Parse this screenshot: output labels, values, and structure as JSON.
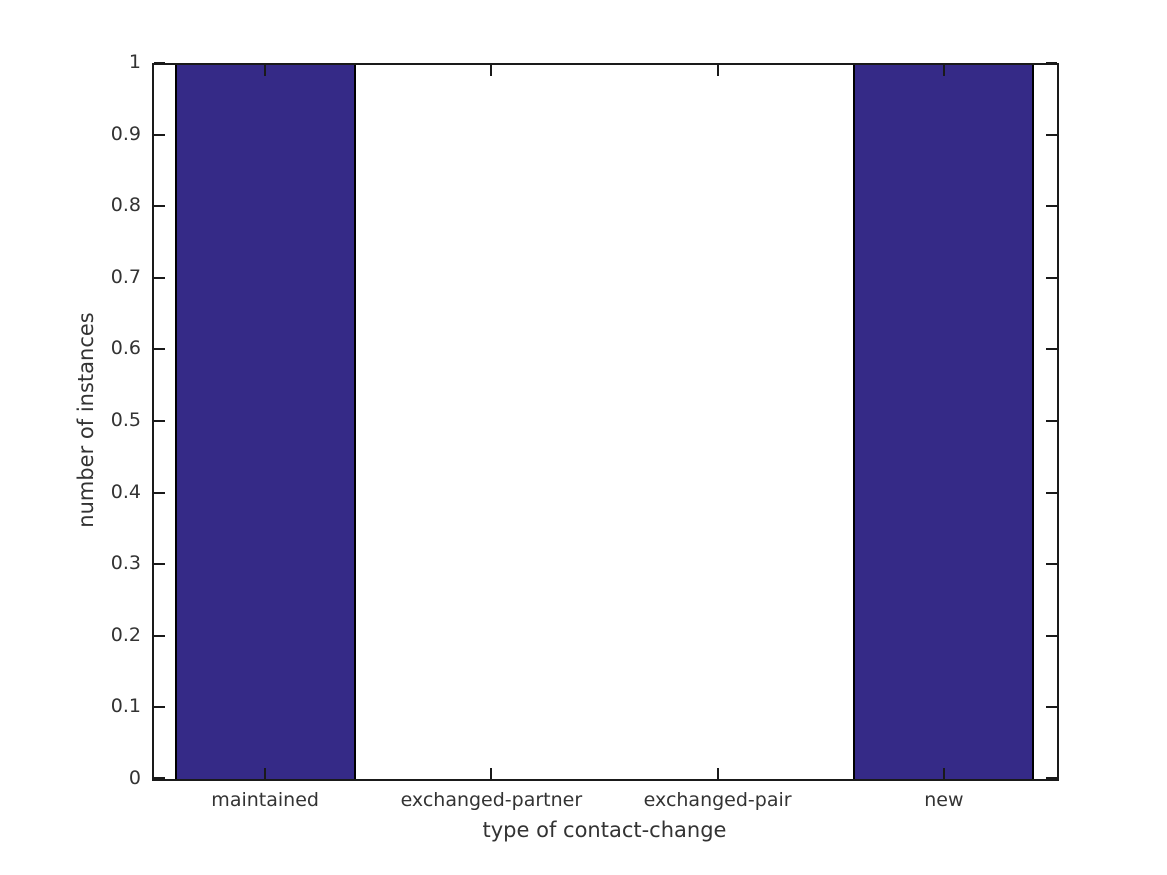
{
  "chart_data": {
    "type": "bar",
    "title": "",
    "categories": [
      "maintained",
      "exchanged-partner",
      "exchanged-pair",
      "new"
    ],
    "values": [
      1,
      0,
      0,
      1
    ],
    "xlabel": "type of contact-change",
    "ylabel": "number of instances",
    "ylim": [
      0,
      1
    ],
    "yticks": [
      0,
      0.1,
      0.2,
      0.3,
      0.4,
      0.5,
      0.6,
      0.7,
      0.8,
      0.9,
      1
    ],
    "ytick_labels": [
      "0",
      "0.1",
      "0.2",
      "0.3",
      "0.4",
      "0.5",
      "0.6",
      "0.7",
      "0.8",
      "0.9",
      "1"
    ],
    "bar_width_fraction": 0.8,
    "grid": false,
    "legend": null,
    "colors": {
      "bar_fill": "#352a87",
      "bar_edge": "#000000",
      "axis": "#1a1a1a",
      "text": "#333333",
      "background": "#ffffff"
    }
  }
}
